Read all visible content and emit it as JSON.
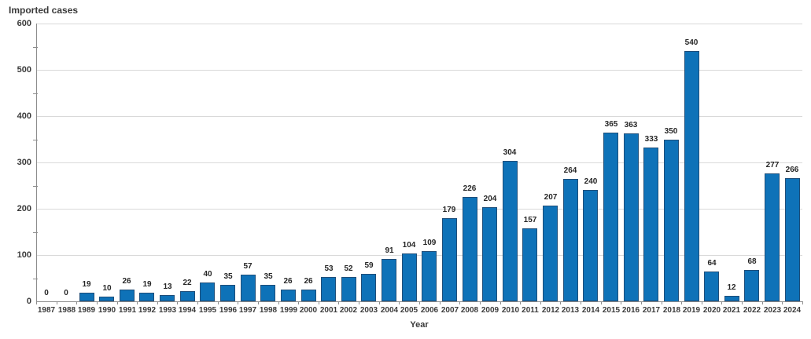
{
  "chart_data": {
    "type": "bar",
    "title": "Imported cases",
    "xlabel": "Year",
    "ylabel": "Imported cases",
    "categories": [
      "1987",
      "1988",
      "1989",
      "1990",
      "1991",
      "1992",
      "1993",
      "1994",
      "1995",
      "1996",
      "1997",
      "1998",
      "1999",
      "2000",
      "2001",
      "2002",
      "2003",
      "2004",
      "2005",
      "2006",
      "2007",
      "2008",
      "2009",
      "2010",
      "2011",
      "2012",
      "2013",
      "2014",
      "2015",
      "2016",
      "2017",
      "2018",
      "2019",
      "2020",
      "2021",
      "2022",
      "2023",
      "2024"
    ],
    "values": [
      0,
      0,
      19,
      10,
      26,
      19,
      13,
      22,
      40,
      35,
      57,
      35,
      26,
      26,
      53,
      52,
      59,
      91,
      104,
      109,
      179,
      226,
      204,
      304,
      157,
      207,
      264,
      240,
      365,
      363,
      333,
      350,
      540,
      64,
      12,
      68,
      277,
      266
    ],
    "ylim": [
      0,
      600
    ],
    "y_major_ticks": [
      0,
      100,
      200,
      300,
      400,
      500,
      600
    ],
    "y_minor_step": 50,
    "grid": "horizontal-major",
    "data_labels": true,
    "legend": "none",
    "colors": {
      "bar_fill": "#0e72b8",
      "bar_border": "#1f4e79",
      "gridline": "#d9d9d9",
      "axis_line": "#8c8c8c",
      "tick_text": "#3a3a3a",
      "label_text": "#262626"
    }
  }
}
